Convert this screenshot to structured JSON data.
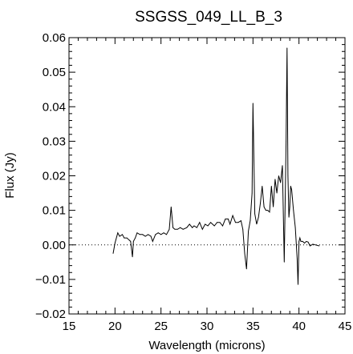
{
  "chart_data": {
    "type": "line",
    "title": "SSGSS_049_LL_B_3",
    "xlabel": "Wavelength (microns)",
    "ylabel": "Flux (Jy)",
    "xlim": [
      15,
      45
    ],
    "ylim": [
      -0.02,
      0.06
    ],
    "xticks": [
      15,
      20,
      25,
      30,
      35,
      40,
      45
    ],
    "yticks": [
      -0.02,
      -0.01,
      0.0,
      0.01,
      0.02,
      0.03,
      0.04,
      0.05,
      0.06
    ],
    "ytick_labels": [
      "−0.02",
      "−0.01",
      "0.00",
      "0.01",
      "0.02",
      "0.03",
      "0.04",
      "0.05",
      "0.06"
    ],
    "zero_line": "dotted",
    "grid": false,
    "series": [
      {
        "color": "#000000",
        "x": [
          19.8,
          20.0,
          20.3,
          20.5,
          20.8,
          21.0,
          21.3,
          21.5,
          21.7,
          21.9,
          22.0,
          22.2,
          22.4,
          22.7,
          23.0,
          23.3,
          23.6,
          23.9,
          24.1,
          24.4,
          24.7,
          25.0,
          25.3,
          25.6,
          25.9,
          26.1,
          26.3,
          26.5,
          26.8,
          27.1,
          27.4,
          27.8,
          28.1,
          28.4,
          28.6,
          28.9,
          29.2,
          29.5,
          29.8,
          30.1,
          30.4,
          30.8,
          31.1,
          31.4,
          31.7,
          32.0,
          32.3,
          32.5,
          32.8,
          33.1,
          33.4,
          33.7,
          33.9,
          34.1,
          34.3,
          34.5,
          34.7,
          34.9,
          35.0,
          35.2,
          35.4,
          35.6,
          35.8,
          36.0,
          36.2,
          36.4,
          36.6,
          36.8,
          37.0,
          37.2,
          37.4,
          37.6,
          37.8,
          38.0,
          38.2,
          38.4,
          38.6,
          38.7,
          38.8,
          38.9,
          39.0,
          39.1,
          39.2,
          39.4,
          39.6,
          39.8,
          39.9,
          40.0,
          40.1,
          40.2,
          40.4,
          40.6,
          40.8,
          41.0,
          41.2,
          41.5,
          41.8,
          42.2
        ],
        "y": [
          -0.0025,
          0.0005,
          0.0035,
          0.0025,
          0.003,
          0.002,
          0.002,
          0.0015,
          0.001,
          -0.0035,
          0.001,
          0.002,
          0.0035,
          0.003,
          0.003,
          0.0025,
          0.003,
          0.0025,
          0.001,
          0.003,
          0.0035,
          0.003,
          0.0035,
          0.003,
          0.0045,
          0.011,
          0.005,
          0.0045,
          0.0045,
          0.005,
          0.0045,
          0.005,
          0.006,
          0.005,
          0.0055,
          0.005,
          0.0065,
          0.0045,
          0.006,
          0.0055,
          0.0065,
          0.0055,
          0.0065,
          0.0065,
          0.0055,
          0.0075,
          0.0075,
          0.006,
          0.0085,
          0.0065,
          0.0065,
          0.007,
          0.0045,
          -0.0025,
          -0.007,
          0.004,
          0.007,
          0.015,
          0.041,
          0.009,
          0.006,
          0.008,
          0.012,
          0.017,
          0.011,
          0.01,
          0.01,
          0.0095,
          0.017,
          0.011,
          0.019,
          0.015,
          0.02,
          0.018,
          0.023,
          -0.005,
          0.03,
          0.057,
          0.02,
          0.008,
          0.011,
          0.017,
          0.016,
          0.01,
          0.005,
          -0.004,
          -0.0115,
          0.001,
          0.002,
          0.001,
          0.001,
          0.0005,
          0.001,
          0.0008,
          -0.0003,
          0.0002,
          0.0,
          -0.0003
        ]
      }
    ]
  }
}
